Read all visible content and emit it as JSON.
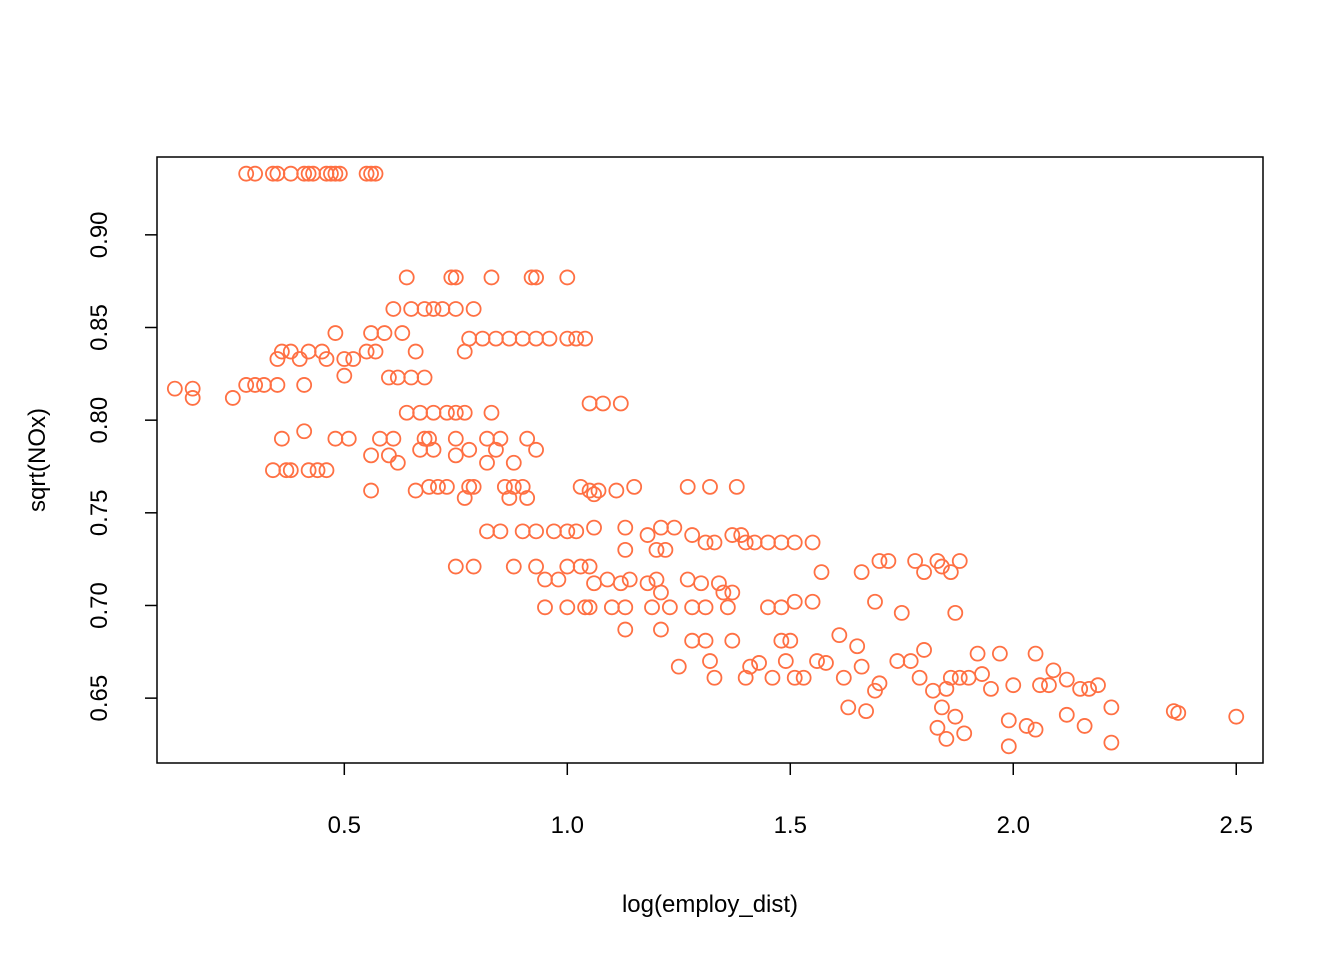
{
  "chart_data": {
    "type": "scatter",
    "xlabel": "log(employ_dist)",
    "ylabel": "sqrt(NOx)",
    "xlim": [
      0.08,
      2.56
    ],
    "ylim": [
      0.615,
      0.942
    ],
    "x_ticks": [
      0.5,
      1.0,
      1.5,
      2.0,
      2.5
    ],
    "x_tick_labels": [
      "0.5",
      "1.0",
      "1.5",
      "2.0",
      "2.5"
    ],
    "y_ticks": [
      0.65,
      0.7,
      0.75,
      0.8,
      0.85,
      0.9
    ],
    "y_tick_labels": [
      "0.65",
      "0.70",
      "0.75",
      "0.80",
      "0.85",
      "0.90"
    ],
    "grid": false,
    "legend": "none",
    "point_color": "#FF7043",
    "points": [
      [
        0.28,
        0.933
      ],
      [
        0.3,
        0.933
      ],
      [
        0.34,
        0.933
      ],
      [
        0.35,
        0.933
      ],
      [
        0.38,
        0.933
      ],
      [
        0.41,
        0.933
      ],
      [
        0.42,
        0.933
      ],
      [
        0.43,
        0.933
      ],
      [
        0.46,
        0.933
      ],
      [
        0.47,
        0.933
      ],
      [
        0.48,
        0.933
      ],
      [
        0.49,
        0.933
      ],
      [
        0.55,
        0.933
      ],
      [
        0.56,
        0.933
      ],
      [
        0.57,
        0.933
      ],
      [
        0.12,
        0.817
      ],
      [
        0.16,
        0.817
      ],
      [
        0.16,
        0.812
      ],
      [
        0.25,
        0.812
      ],
      [
        0.28,
        0.819
      ],
      [
        0.3,
        0.819
      ],
      [
        0.32,
        0.819
      ],
      [
        0.35,
        0.819
      ],
      [
        0.41,
        0.819
      ],
      [
        0.35,
        0.833
      ],
      [
        0.36,
        0.837
      ],
      [
        0.38,
        0.837
      ],
      [
        0.4,
        0.833
      ],
      [
        0.42,
        0.837
      ],
      [
        0.45,
        0.837
      ],
      [
        0.46,
        0.833
      ],
      [
        0.48,
        0.847
      ],
      [
        0.5,
        0.833
      ],
      [
        0.52,
        0.833
      ],
      [
        0.55,
        0.837
      ],
      [
        0.57,
        0.837
      ],
      [
        0.6,
        0.823
      ],
      [
        0.62,
        0.823
      ],
      [
        0.65,
        0.823
      ],
      [
        0.68,
        0.823
      ],
      [
        0.5,
        0.824
      ],
      [
        0.56,
        0.847
      ],
      [
        0.59,
        0.847
      ],
      [
        0.61,
        0.86
      ],
      [
        0.63,
        0.847
      ],
      [
        0.65,
        0.86
      ],
      [
        0.66,
        0.837
      ],
      [
        0.68,
        0.86
      ],
      [
        0.7,
        0.86
      ],
      [
        0.72,
        0.86
      ],
      [
        0.75,
        0.86
      ],
      [
        0.79,
        0.86
      ],
      [
        0.77,
        0.837
      ],
      [
        0.64,
        0.877
      ],
      [
        0.74,
        0.877
      ],
      [
        0.75,
        0.877
      ],
      [
        0.83,
        0.877
      ],
      [
        0.92,
        0.877
      ],
      [
        0.93,
        0.877
      ],
      [
        1.0,
        0.877
      ],
      [
        0.78,
        0.844
      ],
      [
        0.81,
        0.844
      ],
      [
        0.84,
        0.844
      ],
      [
        0.87,
        0.844
      ],
      [
        0.9,
        0.844
      ],
      [
        0.93,
        0.844
      ],
      [
        0.96,
        0.844
      ],
      [
        1.0,
        0.844
      ],
      [
        1.02,
        0.844
      ],
      [
        1.04,
        0.844
      ],
      [
        0.64,
        0.804
      ],
      [
        0.67,
        0.804
      ],
      [
        0.7,
        0.804
      ],
      [
        0.73,
        0.804
      ],
      [
        0.75,
        0.804
      ],
      [
        0.77,
        0.804
      ],
      [
        0.83,
        0.804
      ],
      [
        1.05,
        0.809
      ],
      [
        1.08,
        0.809
      ],
      [
        1.12,
        0.809
      ],
      [
        0.36,
        0.79
      ],
      [
        0.41,
        0.794
      ],
      [
        0.48,
        0.79
      ],
      [
        0.51,
        0.79
      ],
      [
        0.58,
        0.79
      ],
      [
        0.61,
        0.79
      ],
      [
        0.68,
        0.79
      ],
      [
        0.69,
        0.79
      ],
      [
        0.75,
        0.79
      ],
      [
        0.82,
        0.79
      ],
      [
        0.85,
        0.79
      ],
      [
        0.91,
        0.79
      ],
      [
        0.56,
        0.781
      ],
      [
        0.6,
        0.781
      ],
      [
        0.62,
        0.777
      ],
      [
        0.67,
        0.784
      ],
      [
        0.7,
        0.784
      ],
      [
        0.75,
        0.781
      ],
      [
        0.78,
        0.784
      ],
      [
        0.82,
        0.777
      ],
      [
        0.84,
        0.784
      ],
      [
        0.88,
        0.777
      ],
      [
        0.93,
        0.784
      ],
      [
        0.34,
        0.773
      ],
      [
        0.37,
        0.773
      ],
      [
        0.38,
        0.773
      ],
      [
        0.42,
        0.773
      ],
      [
        0.44,
        0.773
      ],
      [
        0.46,
        0.773
      ],
      [
        0.56,
        0.762
      ],
      [
        0.66,
        0.762
      ],
      [
        0.69,
        0.764
      ],
      [
        0.71,
        0.764
      ],
      [
        0.73,
        0.764
      ],
      [
        0.78,
        0.764
      ],
      [
        0.79,
        0.764
      ],
      [
        0.86,
        0.764
      ],
      [
        0.88,
        0.764
      ],
      [
        0.9,
        0.764
      ],
      [
        0.91,
        0.758
      ],
      [
        0.87,
        0.758
      ],
      [
        0.77,
        0.758
      ],
      [
        1.03,
        0.764
      ],
      [
        1.05,
        0.762
      ],
      [
        1.06,
        0.76
      ],
      [
        1.07,
        0.762
      ],
      [
        1.11,
        0.762
      ],
      [
        1.15,
        0.764
      ],
      [
        1.27,
        0.764
      ],
      [
        1.32,
        0.764
      ],
      [
        1.38,
        0.764
      ],
      [
        0.82,
        0.74
      ],
      [
        0.85,
        0.74
      ],
      [
        0.9,
        0.74
      ],
      [
        0.93,
        0.74
      ],
      [
        0.97,
        0.74
      ],
      [
        1.0,
        0.74
      ],
      [
        1.02,
        0.74
      ],
      [
        1.06,
        0.742
      ],
      [
        1.13,
        0.742
      ],
      [
        1.18,
        0.738
      ],
      [
        1.21,
        0.742
      ],
      [
        1.24,
        0.742
      ],
      [
        1.28,
        0.738
      ],
      [
        1.31,
        0.734
      ],
      [
        1.33,
        0.734
      ],
      [
        1.37,
        0.738
      ],
      [
        1.39,
        0.738
      ],
      [
        1.4,
        0.734
      ],
      [
        1.42,
        0.734
      ],
      [
        1.45,
        0.734
      ],
      [
        1.48,
        0.734
      ],
      [
        1.51,
        0.734
      ],
      [
        1.55,
        0.734
      ],
      [
        0.75,
        0.721
      ],
      [
        0.79,
        0.721
      ],
      [
        0.88,
        0.721
      ],
      [
        0.93,
        0.721
      ],
      [
        1.0,
        0.721
      ],
      [
        1.03,
        0.721
      ],
      [
        1.05,
        0.721
      ],
      [
        1.13,
        0.73
      ],
      [
        1.2,
        0.73
      ],
      [
        1.22,
        0.73
      ],
      [
        0.95,
        0.714
      ],
      [
        0.98,
        0.714
      ],
      [
        1.06,
        0.712
      ],
      [
        1.09,
        0.714
      ],
      [
        1.12,
        0.712
      ],
      [
        1.14,
        0.714
      ],
      [
        1.18,
        0.712
      ],
      [
        1.2,
        0.714
      ],
      [
        1.27,
        0.714
      ],
      [
        1.3,
        0.712
      ],
      [
        1.34,
        0.712
      ],
      [
        1.35,
        0.707
      ],
      [
        1.37,
        0.707
      ],
      [
        1.21,
        0.707
      ],
      [
        0.95,
        0.699
      ],
      [
        1.0,
        0.699
      ],
      [
        1.04,
        0.699
      ],
      [
        1.05,
        0.699
      ],
      [
        1.1,
        0.699
      ],
      [
        1.13,
        0.699
      ],
      [
        1.19,
        0.699
      ],
      [
        1.23,
        0.699
      ],
      [
        1.28,
        0.699
      ],
      [
        1.31,
        0.699
      ],
      [
        1.36,
        0.699
      ],
      [
        1.45,
        0.699
      ],
      [
        1.48,
        0.699
      ],
      [
        1.51,
        0.702
      ],
      [
        1.55,
        0.702
      ],
      [
        1.13,
        0.687
      ],
      [
        1.21,
        0.687
      ],
      [
        1.28,
        0.681
      ],
      [
        1.31,
        0.681
      ],
      [
        1.37,
        0.681
      ],
      [
        1.48,
        0.681
      ],
      [
        1.5,
        0.681
      ],
      [
        1.25,
        0.667
      ],
      [
        1.32,
        0.67
      ],
      [
        1.33,
        0.661
      ],
      [
        1.4,
        0.661
      ],
      [
        1.41,
        0.667
      ],
      [
        1.43,
        0.669
      ],
      [
        1.46,
        0.661
      ],
      [
        1.49,
        0.67
      ],
      [
        1.51,
        0.661
      ],
      [
        1.53,
        0.661
      ],
      [
        1.56,
        0.67
      ],
      [
        1.58,
        0.669
      ],
      [
        1.61,
        0.684
      ],
      [
        1.62,
        0.661
      ],
      [
        1.65,
        0.678
      ],
      [
        1.66,
        0.667
      ],
      [
        1.69,
        0.654
      ],
      [
        1.7,
        0.658
      ],
      [
        1.74,
        0.67
      ],
      [
        1.77,
        0.67
      ],
      [
        1.79,
        0.661
      ],
      [
        1.8,
        0.676
      ],
      [
        1.82,
        0.654
      ],
      [
        1.57,
        0.718
      ],
      [
        1.66,
        0.718
      ],
      [
        1.69,
        0.702
      ],
      [
        1.7,
        0.724
      ],
      [
        1.72,
        0.724
      ],
      [
        1.75,
        0.696
      ],
      [
        1.78,
        0.724
      ],
      [
        1.8,
        0.718
      ],
      [
        1.83,
        0.724
      ],
      [
        1.84,
        0.721
      ],
      [
        1.86,
        0.718
      ],
      [
        1.87,
        0.696
      ],
      [
        1.88,
        0.724
      ],
      [
        1.63,
        0.645
      ],
      [
        1.67,
        0.643
      ],
      [
        1.84,
        0.645
      ],
      [
        1.85,
        0.655
      ],
      [
        1.86,
        0.661
      ],
      [
        1.88,
        0.661
      ],
      [
        1.9,
        0.661
      ],
      [
        1.92,
        0.674
      ],
      [
        1.93,
        0.663
      ],
      [
        1.95,
        0.655
      ],
      [
        1.97,
        0.674
      ],
      [
        2.0,
        0.657
      ],
      [
        2.05,
        0.674
      ],
      [
        2.06,
        0.657
      ],
      [
        2.08,
        0.657
      ],
      [
        2.09,
        0.665
      ],
      [
        2.12,
        0.66
      ],
      [
        2.15,
        0.655
      ],
      [
        2.17,
        0.655
      ],
      [
        2.19,
        0.657
      ],
      [
        1.83,
        0.634
      ],
      [
        1.85,
        0.628
      ],
      [
        1.87,
        0.64
      ],
      [
        1.89,
        0.631
      ],
      [
        1.99,
        0.624
      ],
      [
        1.99,
        0.638
      ],
      [
        2.03,
        0.635
      ],
      [
        2.05,
        0.633
      ],
      [
        2.12,
        0.641
      ],
      [
        2.16,
        0.635
      ],
      [
        2.22,
        0.645
      ],
      [
        2.22,
        0.626
      ],
      [
        2.36,
        0.643
      ],
      [
        2.37,
        0.642
      ],
      [
        2.5,
        0.64
      ]
    ]
  }
}
